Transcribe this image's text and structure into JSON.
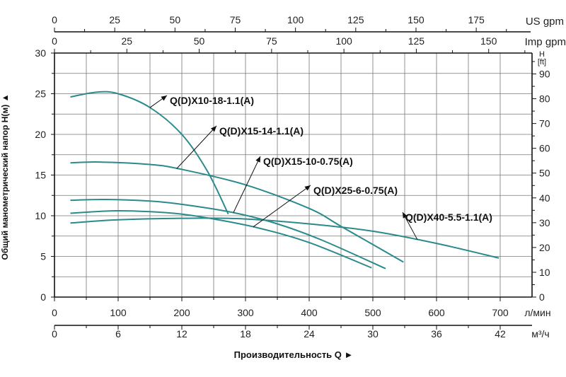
{
  "chart_data": {
    "type": "line",
    "xlabel": "Производительность Q ►",
    "ylabel": "Общий манометрический напор H(м) ▲",
    "xlim": [
      0,
      750
    ],
    "ylim": [
      0,
      30
    ],
    "grid": true,
    "line_color": "#2b8a8c",
    "x_axes": {
      "primary": {
        "unit": "л/мин",
        "ticks": [
          0,
          100,
          200,
          300,
          400,
          500,
          600,
          700
        ]
      },
      "m3h": {
        "unit": "м³/ч",
        "ticks": [
          0,
          6,
          12,
          18,
          24,
          30,
          36,
          42
        ]
      },
      "us_gpm": {
        "unit": "US gpm",
        "ticks": [
          0,
          25,
          50,
          75,
          100,
          125,
          150,
          175
        ]
      },
      "imp_gpm": {
        "unit": "Imp gpm",
        "ticks": [
          0,
          25,
          50,
          75,
          100,
          125,
          150
        ]
      }
    },
    "y_axes": {
      "primary": {
        "unit": "H(м)",
        "ticks": [
          0,
          5,
          10,
          15,
          20,
          25,
          30
        ]
      },
      "ft": {
        "unit": "H [ft]",
        "ticks": [
          0,
          10,
          20,
          30,
          40,
          50,
          60,
          70,
          80,
          90
        ]
      }
    },
    "series": [
      {
        "name": "Q(D)X10-18-1.1(A)",
        "x": [
          25,
          67,
          100,
          150,
          200,
          240,
          273
        ],
        "y": [
          24.6,
          25.2,
          25.0,
          23.3,
          20.0,
          15.5,
          10.2
        ]
      },
      {
        "name": "Q(D)X15-14-1.1(A)",
        "x": [
          25,
          70,
          150,
          200,
          300,
          400,
          450,
          548
        ],
        "y": [
          16.5,
          16.6,
          16.3,
          15.7,
          13.8,
          10.9,
          8.7,
          4.3
        ]
      },
      {
        "name": "Q(D)X15-10-0.75(A)",
        "x": [
          25,
          80,
          150,
          200,
          280,
          350,
          420,
          520
        ],
        "y": [
          11.9,
          12.0,
          11.8,
          11.4,
          10.4,
          9.0,
          7.0,
          3.5
        ]
      },
      {
        "name": "Q(D)X25-6-0.75(A)",
        "x": [
          25,
          90,
          150,
          200,
          250,
          320,
          400,
          498
        ],
        "y": [
          10.3,
          10.6,
          10.5,
          10.2,
          9.6,
          8.5,
          6.7,
          3.6
        ]
      },
      {
        "name": "Q(D)X40-5.5-1.1(A)",
        "x": [
          25,
          100,
          220,
          300,
          400,
          500,
          600,
          698
        ],
        "y": [
          9.1,
          9.5,
          9.7,
          9.6,
          9.0,
          8.1,
          6.6,
          4.8
        ]
      }
    ]
  }
}
